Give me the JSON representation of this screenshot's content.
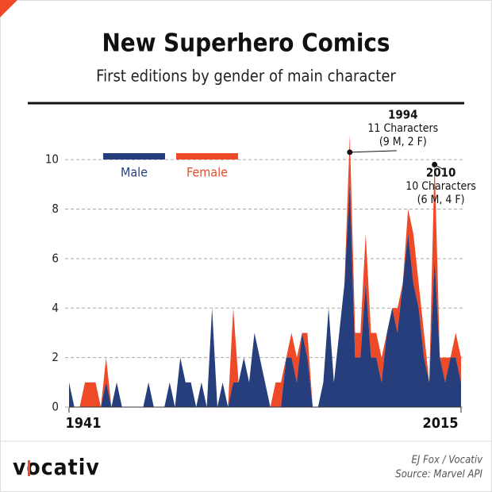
{
  "chart_data": {
    "type": "stacked_area",
    "title": "New Superhero Comics",
    "subtitle": "First editions by gender of main character",
    "x": [
      1941,
      1942,
      1943,
      1944,
      1945,
      1946,
      1947,
      1948,
      1949,
      1950,
      1951,
      1952,
      1953,
      1954,
      1955,
      1956,
      1957,
      1958,
      1959,
      1960,
      1961,
      1962,
      1963,
      1964,
      1965,
      1966,
      1967,
      1968,
      1969,
      1970,
      1971,
      1972,
      1973,
      1974,
      1975,
      1976,
      1977,
      1978,
      1979,
      1980,
      1981,
      1982,
      1983,
      1984,
      1985,
      1986,
      1987,
      1988,
      1989,
      1990,
      1991,
      1992,
      1993,
      1994,
      1995,
      1996,
      1997,
      1998,
      1999,
      2000,
      2001,
      2002,
      2003,
      2004,
      2005,
      2006,
      2007,
      2008,
      2009,
      2010,
      2011,
      2012,
      2013,
      2014,
      2015
    ],
    "series": [
      {
        "name": "Male",
        "color": "#263f7c",
        "values": [
          1,
          0,
          0,
          0,
          0,
          0,
          0,
          1,
          0,
          1,
          0,
          0,
          0,
          0,
          0,
          1,
          0,
          0,
          0,
          1,
          0,
          2,
          1,
          1,
          0,
          1,
          0,
          4,
          0,
          1,
          0,
          1,
          1,
          2,
          1,
          3,
          2,
          1,
          0,
          0,
          0,
          2,
          2,
          1,
          3,
          2,
          0,
          0,
          1,
          4,
          1,
          3,
          5,
          9,
          2,
          2,
          5,
          2,
          2,
          1,
          3,
          4,
          3,
          5,
          7,
          5,
          4,
          2,
          1,
          6,
          2,
          1,
          2,
          2,
          1
        ]
      },
      {
        "name": "Female",
        "color": "#ef4a28",
        "values": [
          0,
          0,
          0,
          1,
          1,
          1,
          0,
          1,
          0,
          0,
          0,
          0,
          0,
          0,
          0,
          0,
          0,
          0,
          0,
          0,
          0,
          0,
          0,
          0,
          0,
          0,
          0,
          0,
          0,
          0,
          0,
          3,
          0,
          0,
          0,
          0,
          0,
          0,
          0,
          1,
          1,
          0,
          1,
          1,
          0,
          1,
          0,
          0,
          0,
          0,
          0,
          0,
          0,
          2,
          1,
          1,
          2,
          1,
          1,
          1,
          0,
          0,
          1,
          0,
          1,
          2,
          1,
          1,
          0,
          4,
          0,
          1,
          0,
          1,
          1
        ]
      }
    ],
    "xlim": [
      1941,
      2015
    ],
    "xticks": [
      1941,
      2015
    ],
    "ylim": [
      0,
      11
    ],
    "yticks": [
      0,
      2,
      4,
      6,
      8,
      10
    ],
    "grid": true,
    "legend": "upper left",
    "annotations": [
      {
        "x": 1994,
        "y": 10.3,
        "lines": [
          "1994",
          "11 Characters",
          "(9 M, 2 F)"
        ]
      },
      {
        "x": 2010,
        "y": 9.8,
        "lines": [
          "2010",
          "10 Characters",
          "(6 M, 4 F)"
        ]
      }
    ]
  },
  "footer": {
    "logo": "vocativ",
    "credit": "EJ Fox / Vocativ",
    "source": "Source: Marvel API"
  }
}
